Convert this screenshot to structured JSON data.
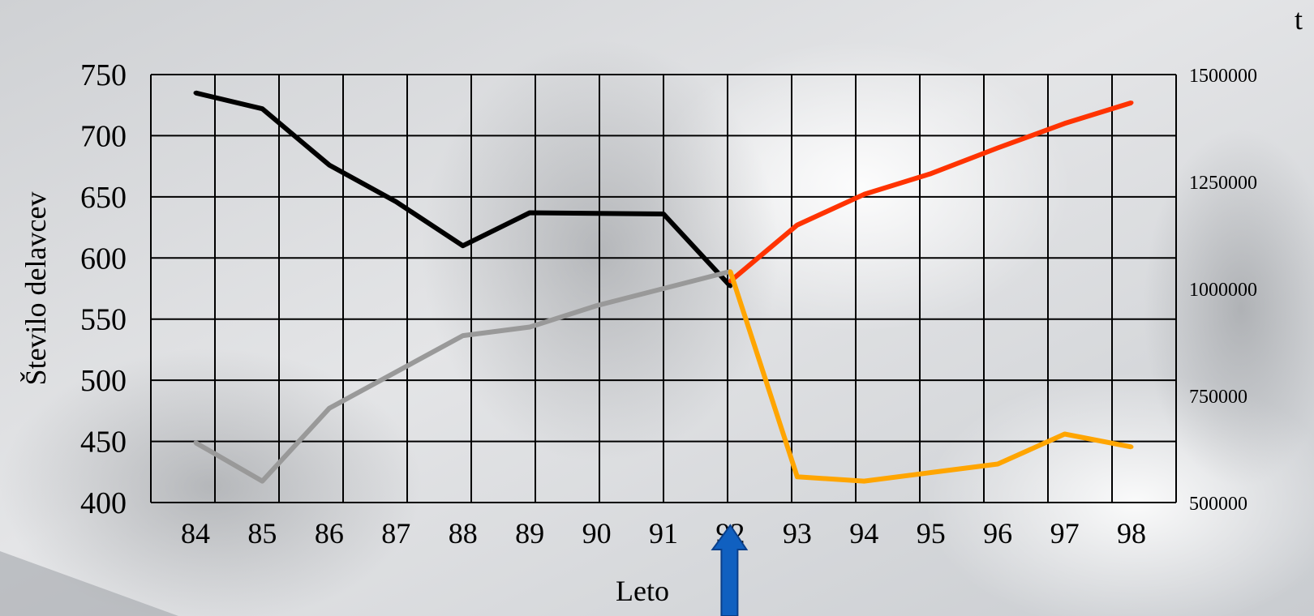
{
  "chart_data": {
    "type": "line",
    "title": "",
    "xlabel": "Leto",
    "ylabel_left": "Število delavcev",
    "ylabel_right": "t",
    "categories": [
      "84",
      "85",
      "86",
      "87",
      "88",
      "89",
      "90",
      "91",
      "92",
      "93",
      "94",
      "95",
      "96",
      "97",
      "98"
    ],
    "y_left_ticks": [
      "750",
      "700",
      "650",
      "600",
      "550",
      "500",
      "450",
      "400"
    ],
    "y_right_ticks": [
      "1500000",
      "1250000",
      "1000000",
      "750000",
      "500000"
    ],
    "ylim_left": [
      400,
      750
    ],
    "ylim_right": [
      500000,
      1500000
    ],
    "grid": true,
    "series": [
      {
        "axis": "left",
        "color": "#000000",
        "points": [
          [
            84,
            735
          ],
          [
            85,
            722
          ],
          [
            86,
            676
          ],
          [
            87,
            646
          ],
          [
            88,
            610
          ],
          [
            89,
            637
          ],
          [
            91,
            636
          ],
          [
            92,
            577
          ]
        ]
      },
      {
        "axis": "left",
        "color": "#ff3300",
        "points": [
          [
            92,
            581
          ],
          [
            93,
            627
          ],
          [
            94,
            652
          ],
          [
            95,
            669
          ],
          [
            96,
            690
          ],
          [
            97,
            710
          ],
          [
            98,
            727
          ]
        ]
      },
      {
        "axis": "right",
        "color": "#999999",
        "points": [
          [
            84,
            640000
          ],
          [
            85,
            550000
          ],
          [
            86,
            720000
          ],
          [
            88,
            890000
          ],
          [
            89,
            910000
          ],
          [
            90,
            960000
          ],
          [
            92,
            1040000
          ]
        ]
      },
      {
        "axis": "right",
        "color": "#ffa500",
        "points": [
          [
            92,
            1040000
          ],
          [
            93,
            560000
          ],
          [
            94,
            550000
          ],
          [
            95,
            570000
          ],
          [
            96,
            590000
          ],
          [
            97,
            660000
          ],
          [
            98,
            630000
          ]
        ]
      }
    ],
    "annotation": {
      "type": "arrow",
      "color": "#1060c0",
      "at_category": "92"
    }
  }
}
